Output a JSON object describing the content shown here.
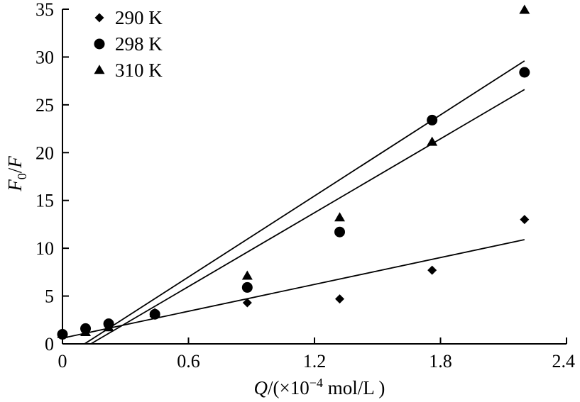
{
  "chart_data": {
    "type": "scatter",
    "xlim": [
      0,
      2.4
    ],
    "ylim": [
      0,
      35
    ],
    "x_ticks": [
      "0",
      "0.6",
      "1.2",
      "1.8",
      "2.4"
    ],
    "y_ticks": [
      "0",
      "5",
      "10",
      "15",
      "20",
      "25",
      "30",
      "35"
    ],
    "xlabel": {
      "var": "Q",
      "pre": "/(×10",
      "exp": "−4",
      "post": " mol/L )"
    },
    "ylabel": {
      "var": "F",
      "sub": "0",
      "sep": "/",
      "var2": "F"
    },
    "legend_position": "top-left",
    "series": [
      {
        "name": "290 K",
        "marker": "diamond",
        "points": [
          [
            0,
            1.0
          ],
          [
            0.11,
            1.3
          ],
          [
            0.22,
            1.8
          ],
          [
            0.44,
            3.0
          ],
          [
            0.88,
            4.3
          ],
          [
            1.32,
            4.7
          ],
          [
            1.76,
            7.7
          ],
          [
            2.2,
            13.0
          ]
        ],
        "fit": [
          [
            0,
            0.6
          ],
          [
            2.2,
            10.9
          ]
        ]
      },
      {
        "name": "298 K",
        "marker": "circle",
        "points": [
          [
            0,
            1.0
          ],
          [
            0.11,
            1.6
          ],
          [
            0.22,
            2.1
          ],
          [
            0.44,
            3.1
          ],
          [
            0.88,
            5.9
          ],
          [
            1.32,
            11.7
          ],
          [
            1.76,
            23.4
          ],
          [
            2.2,
            28.4
          ]
        ],
        "fit": [
          [
            0.105,
            0
          ],
          [
            2.2,
            29.6
          ]
        ]
      },
      {
        "name": "310 K",
        "marker": "triangle",
        "points": [
          [
            0,
            1.0
          ],
          [
            0.11,
            1.2
          ],
          [
            0.22,
            1.7
          ],
          [
            0.44,
            3.2
          ],
          [
            0.88,
            7.1
          ],
          [
            1.32,
            13.2
          ],
          [
            1.76,
            21.1
          ],
          [
            2.2,
            34.9
          ]
        ],
        "fit": [
          [
            0.135,
            0
          ],
          [
            2.2,
            26.6
          ]
        ]
      }
    ]
  }
}
